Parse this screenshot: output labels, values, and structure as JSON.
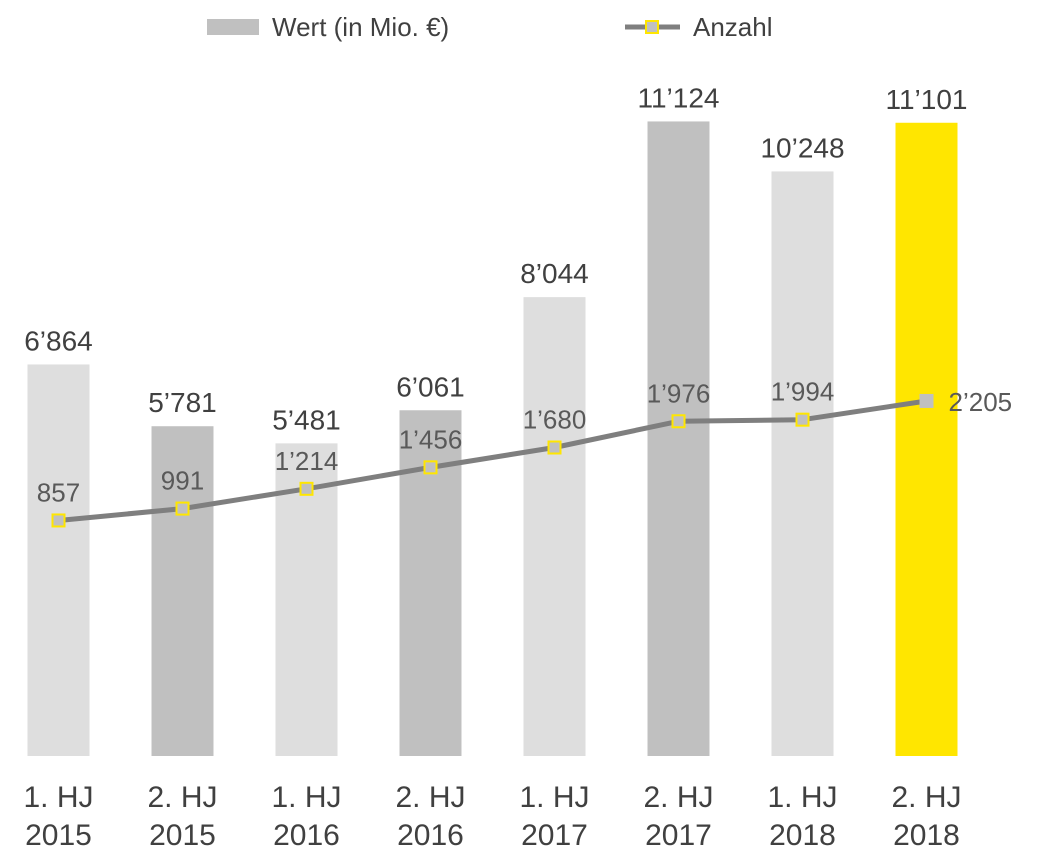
{
  "chart_data": {
    "type": "bar",
    "categories": [
      [
        "1. HJ",
        "2015"
      ],
      [
        "2. HJ",
        "2015"
      ],
      [
        "1. HJ",
        "2016"
      ],
      [
        "2. HJ",
        "2016"
      ],
      [
        "1. HJ",
        "2017"
      ],
      [
        "2. HJ",
        "2017"
      ],
      [
        "1. HJ",
        "2018"
      ],
      [
        "2. HJ",
        "2018"
      ]
    ],
    "series": [
      {
        "name": "Wert (in Mio. €)",
        "type": "bar",
        "values": [
          6864,
          5781,
          5481,
          6061,
          8044,
          11124,
          10248,
          11101
        ],
        "labels": [
          "6’864",
          "5’781",
          "5’481",
          "6’061",
          "8’044",
          "11’124",
          "10’248",
          "11’101"
        ],
        "colors": [
          "#dedede",
          "#c0c0c0",
          "#dedede",
          "#c0c0c0",
          "#dedede",
          "#c0c0c0",
          "#dedede",
          "#ffe600"
        ]
      },
      {
        "name": "Anzahl",
        "type": "line",
        "values": [
          857,
          991,
          1214,
          1456,
          1680,
          1976,
          1994,
          2205
        ],
        "labels": [
          "857",
          "991",
          "1’214",
          "1’456",
          "1’680",
          "1’976",
          "1’994",
          "2’205"
        ],
        "line_color": "#7f7f7f",
        "marker_fill": "#c0c0c0",
        "marker_stroke": "#ffe600"
      }
    ],
    "legend": {
      "placement": "top",
      "bar_swatch_color": "#c0c0c0"
    },
    "axes": {
      "bar_ylim": [
        0,
        11500
      ],
      "line_ylim": [
        -1800,
        5600
      ]
    },
    "grid": false
  }
}
